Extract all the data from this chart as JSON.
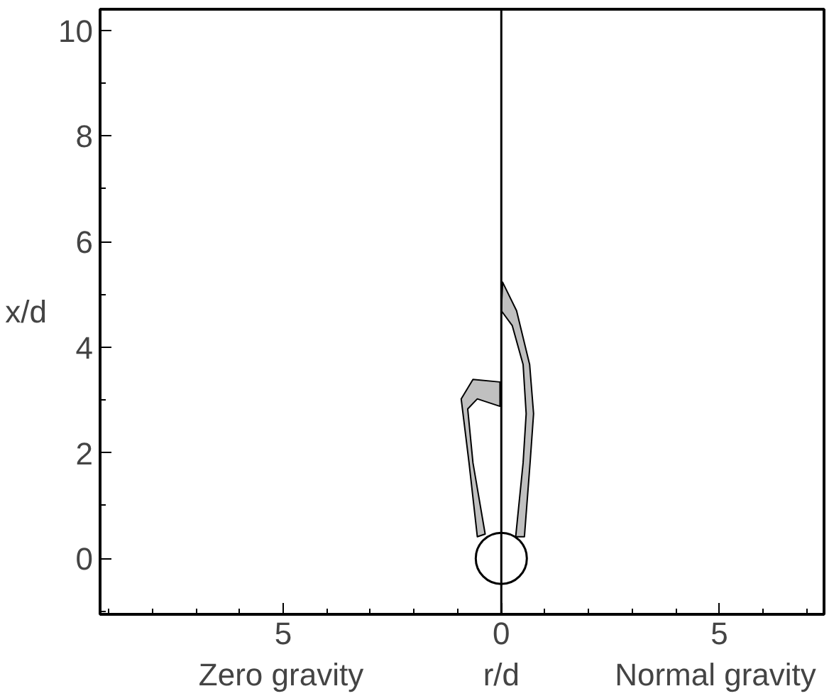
{
  "chart_data": {
    "type": "area",
    "xlabel": "r/d",
    "ylabel": "x/d",
    "annotations": [
      "Zero gravity",
      "Normal gravity"
    ],
    "xlim": [
      -9.2,
      7.4
    ],
    "ylim": [
      -1.06,
      10.4
    ],
    "xticks": [
      {
        "value": -9,
        "label": null
      },
      {
        "value": -8,
        "label": null
      },
      {
        "value": -7,
        "label": null
      },
      {
        "value": -6,
        "label": null
      },
      {
        "value": -5,
        "label": "5"
      },
      {
        "value": -4,
        "label": null
      },
      {
        "value": -3,
        "label": null
      },
      {
        "value": -2,
        "label": null
      },
      {
        "value": -1,
        "label": null
      },
      0,
      {
        "value": 1,
        "label": null
      },
      {
        "value": 2,
        "label": null
      },
      {
        "value": 3,
        "label": null
      },
      {
        "value": 4,
        "label": null
      },
      {
        "value": 5,
        "label": "5"
      },
      {
        "value": 6,
        "label": null
      },
      {
        "value": 7,
        "label": null
      }
    ],
    "yticks": [
      {
        "value": -1,
        "label": null
      },
      0,
      {
        "value": 1,
        "label": null
      },
      2,
      {
        "value": 3,
        "label": null
      },
      4,
      {
        "value": 5,
        "label": null
      },
      6,
      {
        "value": 7,
        "label": null
      },
      8,
      {
        "value": 9,
        "label": null
      },
      10
    ],
    "grid": false,
    "ref_lines": [
      {
        "axis": "x",
        "value": 0,
        "color": "#000000"
      }
    ],
    "series": [
      {
        "color": "#c0c0c0",
        "x": [
          0.03,
          0.35,
          0.65,
          0.74,
          0.66,
          0.53,
          0.33,
          0.5,
          0.57,
          0.5,
          0.25,
          0.0
        ],
        "values": [
          5.23,
          4.69,
          3.67,
          2.74,
          1.81,
          0.41,
          0.41,
          1.81,
          2.74,
          3.67,
          4.41,
          4.69
        ]
      },
      {
        "color": "#c0c0c0",
        "x": [
          -0.55,
          -0.74,
          -0.92,
          -0.65,
          -0.03,
          -0.03,
          -0.55,
          -0.77,
          -0.65,
          -0.37
        ],
        "values": [
          0.41,
          1.81,
          3.02,
          3.39,
          3.34,
          2.88,
          3.02,
          2.83,
          1.81,
          0.46
        ]
      },
      {
        "type": "scatter",
        "marker": "circle",
        "color": "#ffffff",
        "x": [
          0
        ],
        "values": [
          0
        ]
      }
    ]
  }
}
